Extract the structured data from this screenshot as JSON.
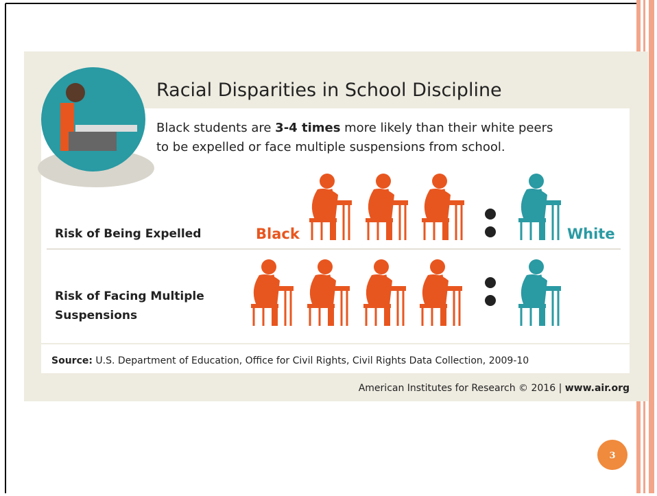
{
  "slide": {
    "title": "Racial Disparities in School Discipline",
    "subtitle": {
      "line1_start": "Black students are ",
      "emphasis": "3-4 times",
      "line1_end": " more likely than their white peers",
      "line2": "to be expelled or face multiple suspensions from school."
    },
    "rows": [
      {
        "label": "Risk of Being Expelled",
        "black_label": "Black",
        "white_label": "White",
        "black_count": 3,
        "white_count": 1
      },
      {
        "label_line1": "Risk of Facing Multiple",
        "label_line2": "Suspensions",
        "black_count": 4,
        "white_count": 1
      }
    ],
    "source": {
      "label": "Source:",
      "text": " U.S. Department of Education, Office for Civil Rights, Civil Rights Data Collection, 2009-10"
    },
    "credit": {
      "text": "American Institutes for Research © 2016 | ",
      "link": "www.air.org"
    },
    "page_number": "3"
  }
}
